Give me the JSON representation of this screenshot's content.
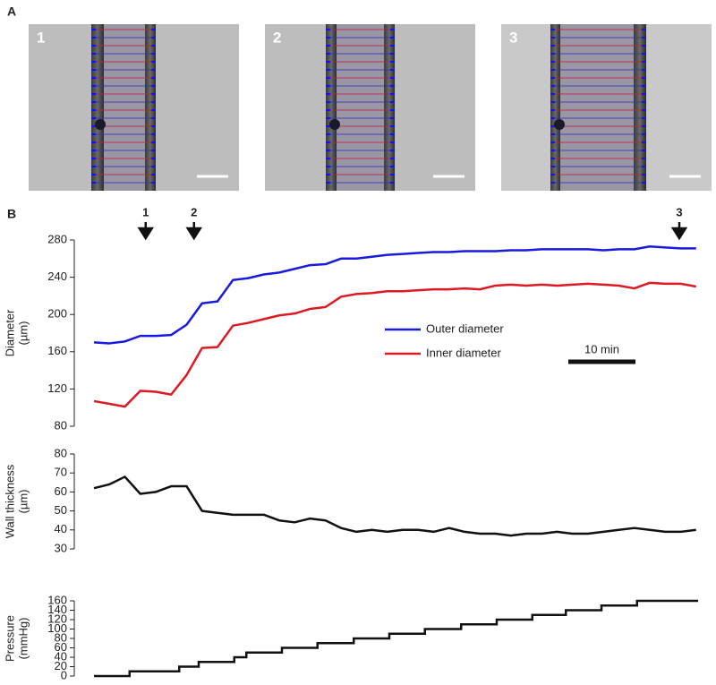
{
  "panel_labels": [
    "A",
    "B"
  ],
  "images": [
    {
      "label": "1"
    },
    {
      "label": "2"
    },
    {
      "label": "3"
    }
  ],
  "chart_data": [
    {
      "type": "line",
      "ylabel": [
        "Diameter",
        "(µm)"
      ],
      "ylim": [
        80,
        280
      ],
      "yticks": [
        80,
        120,
        160,
        200,
        240,
        280
      ],
      "xlim": [
        0,
        90
      ],
      "legend": "center-right",
      "scalebar": {
        "value": 10,
        "label": "10 min"
      },
      "arrows": [
        {
          "label": "1",
          "x": 7.7
        },
        {
          "label": "2",
          "x": 14.9
        },
        {
          "label": "3",
          "x": 87.2
        }
      ],
      "x": [
        0,
        2.3,
        4.6,
        6.9,
        9.2,
        11.5,
        13.8,
        16.1,
        18.4,
        20.7,
        23,
        25.3,
        27.6,
        29.9,
        32.2,
        34.5,
        36.8,
        39.1,
        41.4,
        43.7,
        46,
        48.3,
        50.6,
        52.9,
        55.2,
        57.5,
        59.8,
        62.1,
        64.4,
        66.7,
        69,
        71.3,
        73.6,
        75.9,
        78.2,
        80.5,
        82.8,
        85.1,
        87.4,
        89.7
      ],
      "series": [
        {
          "name": "Outer diameter",
          "color": "#1a1adc",
          "values": [
            170,
            169,
            171,
            177,
            177,
            178,
            189,
            212,
            214,
            237,
            239,
            243,
            245,
            249,
            253,
            254,
            260,
            260,
            262,
            264,
            265,
            266,
            267,
            267,
            268,
            268,
            268,
            269,
            269,
            270,
            270,
            270,
            270,
            269,
            270,
            270,
            273,
            272,
            271,
            271
          ]
        },
        {
          "name": "Inner diameter",
          "color": "#dc1a23",
          "values": [
            107,
            104,
            101,
            118,
            117,
            114,
            135,
            164,
            165,
            188,
            191,
            195,
            199,
            201,
            206,
            208,
            219,
            222,
            223,
            225,
            225,
            226,
            227,
            227,
            228,
            227,
            231,
            232,
            231,
            232,
            231,
            232,
            233,
            232,
            231,
            228,
            234,
            233,
            233,
            230
          ]
        }
      ]
    },
    {
      "type": "line",
      "ylabel": [
        "Wall thickness",
        "(µm)"
      ],
      "ylim": [
        30,
        80
      ],
      "yticks": [
        30,
        40,
        50,
        60,
        70,
        80
      ],
      "xlim": [
        0,
        90
      ],
      "x": [
        0,
        2.3,
        4.6,
        6.9,
        9.2,
        11.5,
        13.8,
        16.1,
        18.4,
        20.7,
        23,
        25.3,
        27.6,
        29.9,
        32.2,
        34.5,
        36.8,
        39.1,
        41.4,
        43.7,
        46,
        48.3,
        50.6,
        52.9,
        55.2,
        57.5,
        59.8,
        62.1,
        64.4,
        66.7,
        69,
        71.3,
        73.6,
        75.9,
        78.2,
        80.5,
        82.8,
        85.1,
        87.4,
        89.7
      ],
      "series": [
        {
          "name": "Wall thickness",
          "color": "#111111",
          "values": [
            62,
            64,
            68,
            59,
            60,
            63,
            63,
            50,
            49,
            48,
            48,
            48,
            45,
            44,
            46,
            45,
            41,
            39,
            40,
            39,
            40,
            40,
            39,
            41,
            39,
            38,
            38,
            37,
            38,
            38,
            39,
            38,
            38,
            39,
            40,
            41,
            40,
            39,
            39,
            40
          ]
        }
      ]
    },
    {
      "type": "step",
      "ylabel": [
        "Pressure",
        "(mmHg)"
      ],
      "ylim": [
        0,
        160
      ],
      "yticks": [
        0,
        20,
        40,
        60,
        80,
        100,
        120,
        140,
        160
      ],
      "xlim": [
        0,
        90
      ],
      "x": [
        0,
        5.3,
        12.7,
        15.6,
        20.9,
        22.7,
        28,
        33.3,
        38.7,
        44,
        49.3,
        54.7,
        60,
        65.3,
        70.3,
        75.6,
        80.9
      ],
      "series": [
        {
          "name": "Pressure",
          "color": "#111111",
          "values": [
            0,
            10,
            20,
            30,
            40,
            50,
            60,
            70,
            80,
            90,
            100,
            110,
            120,
            130,
            140,
            150,
            160
          ]
        }
      ]
    }
  ]
}
